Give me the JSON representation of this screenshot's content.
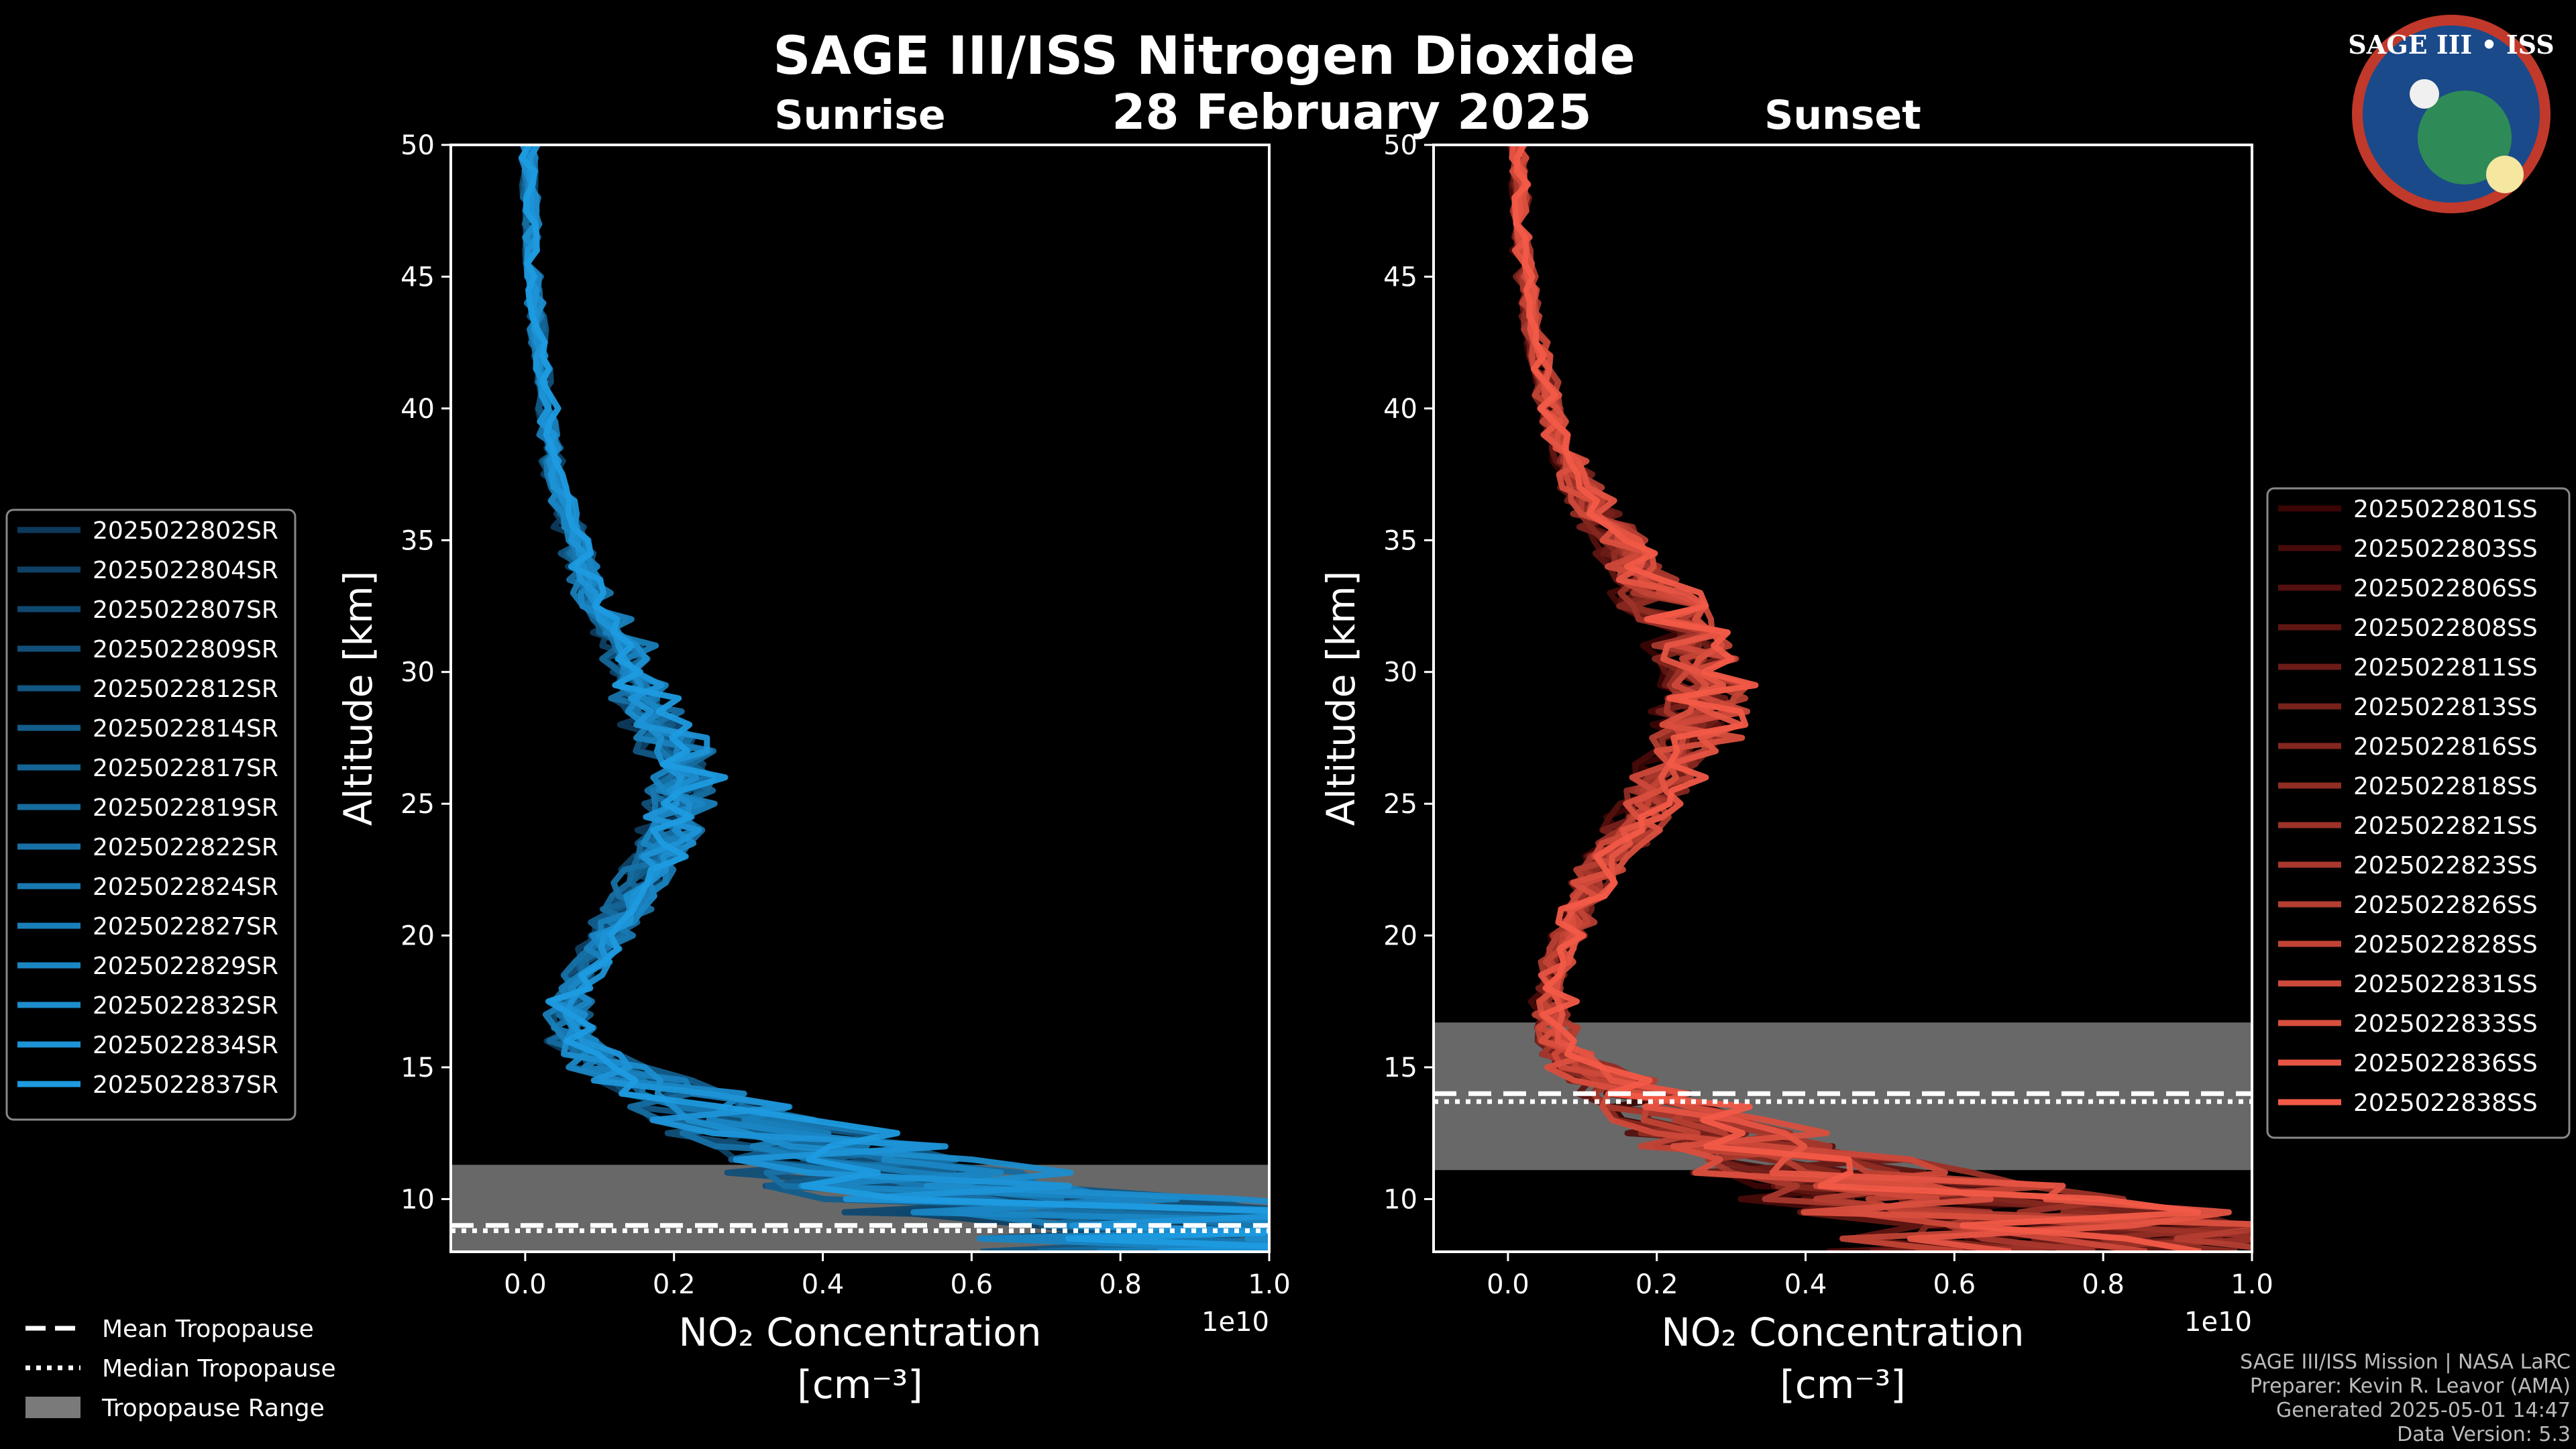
{
  "title": "SAGE III/ISS Nitrogen Dioxide",
  "date": "28 February 2025",
  "badge": {
    "text": "SAGE III • ISS",
    "colors": [
      "#1a4a8a",
      "#c0392b",
      "#ffffff"
    ]
  },
  "footer": [
    "SAGE III/ISS Mission | NASA LaRC",
    "Preparer: Kevin R. Leavor (AMA)",
    "Generated 2025-05-01 14:47",
    "Data Version: 5.3"
  ],
  "tropopause_legend": [
    {
      "label": "Mean Tropopause",
      "style": "dashed"
    },
    {
      "label": "Median Tropopause",
      "style": "dotted"
    },
    {
      "label": "Tropopause Range",
      "style": "patch"
    }
  ],
  "chart_data": [
    {
      "type": "line",
      "title": "Sunrise",
      "xlabel": "NO₂ Concentration",
      "xlabel_units": "[cm⁻³]",
      "ylabel": "Altitude [km]",
      "xlim": [
        -0.1,
        1.0
      ],
      "ylim": [
        8,
        50
      ],
      "x_offset_label": "1e10",
      "xticks": [
        0.0,
        0.2,
        0.4,
        0.6,
        0.8,
        1.0
      ],
      "xtick_labels": [
        "0.0",
        "0.2",
        "0.4",
        "0.6",
        "0.8",
        "1.0"
      ],
      "yticks": [
        10,
        15,
        20,
        25,
        30,
        35,
        40,
        45,
        50
      ],
      "ytick_labels": [
        "10",
        "15",
        "20",
        "25",
        "30",
        "35",
        "40",
        "45",
        "50"
      ],
      "color_start": "#0d3a5c",
      "color_end": "#1e9be0",
      "legend_position": "left",
      "tropopause": {
        "mean": 9.0,
        "median": 8.8,
        "min": 8.0,
        "max": 11.3
      },
      "series_names": [
        "2025022802SR",
        "2025022804SR",
        "2025022807SR",
        "2025022809SR",
        "2025022812SR",
        "2025022814SR",
        "2025022817SR",
        "2025022819SR",
        "2025022822SR",
        "2025022824SR",
        "2025022827SR",
        "2025022829SR",
        "2025022832SR",
        "2025022834SR",
        "2025022837SR"
      ],
      "profile": {
        "altitude": [
          8.5,
          9,
          10,
          11,
          12,
          13,
          14,
          15,
          16,
          17,
          18,
          19,
          20,
          21,
          22,
          23,
          24,
          25,
          26,
          27,
          28,
          29,
          30,
          31,
          32,
          33,
          34,
          35,
          36,
          37,
          38,
          39,
          40,
          41,
          42,
          43,
          44,
          45,
          46,
          47,
          48,
          49,
          50
        ],
        "no2": [
          0.95,
          0.85,
          0.6,
          0.45,
          0.35,
          0.25,
          0.18,
          0.1,
          0.06,
          0.05,
          0.06,
          0.08,
          0.1,
          0.12,
          0.14,
          0.16,
          0.18,
          0.19,
          0.19,
          0.18,
          0.16,
          0.14,
          0.13,
          0.12,
          0.1,
          0.08,
          0.07,
          0.06,
          0.05,
          0.04,
          0.035,
          0.03,
          0.025,
          0.02,
          0.018,
          0.015,
          0.012,
          0.01,
          0.008,
          0.007,
          0.006,
          0.005,
          0.005
        ]
      }
    },
    {
      "type": "line",
      "title": "Sunset",
      "xlabel": "NO₂ Concentration",
      "xlabel_units": "[cm⁻³]",
      "ylabel": "Altitude [km]",
      "xlim": [
        -0.1,
        1.0
      ],
      "ylim": [
        8,
        50
      ],
      "x_offset_label": "1e10",
      "xticks": [
        0.0,
        0.2,
        0.4,
        0.6,
        0.8,
        1.0
      ],
      "xtick_labels": [
        "0.0",
        "0.2",
        "0.4",
        "0.6",
        "0.8",
        "1.0"
      ],
      "yticks": [
        10,
        15,
        20,
        25,
        30,
        35,
        40,
        45,
        50
      ],
      "ytick_labels": [
        "10",
        "15",
        "20",
        "25",
        "30",
        "35",
        "40",
        "45",
        "50"
      ],
      "color_start": "#3a0505",
      "color_end": "#f25a47",
      "legend_position": "right",
      "tropopause": {
        "mean": 14.0,
        "median": 13.7,
        "min": 11.1,
        "max": 16.7
      },
      "series_names": [
        "2025022801SS",
        "2025022803SS",
        "2025022806SS",
        "2025022808SS",
        "2025022811SS",
        "2025022813SS",
        "2025022816SS",
        "2025022818SS",
        "2025022821SS",
        "2025022823SS",
        "2025022826SS",
        "2025022828SS",
        "2025022831SS",
        "2025022833SS",
        "2025022836SS",
        "2025022838SS"
      ],
      "profile": {
        "altitude": [
          8.5,
          9,
          10,
          11,
          12,
          13,
          14,
          15,
          16,
          17,
          18,
          19,
          20,
          21,
          22,
          23,
          24,
          25,
          26,
          27,
          28,
          29,
          30,
          31,
          32,
          33,
          34,
          35,
          36,
          37,
          38,
          39,
          40,
          41,
          42,
          43,
          44,
          45,
          46,
          47,
          48,
          49,
          50
        ],
        "no2": [
          0.95,
          0.9,
          0.75,
          0.55,
          0.4,
          0.3,
          0.22,
          0.12,
          0.08,
          0.07,
          0.07,
          0.08,
          0.1,
          0.12,
          0.14,
          0.17,
          0.2,
          0.23,
          0.26,
          0.29,
          0.31,
          0.32,
          0.32,
          0.3,
          0.27,
          0.24,
          0.21,
          0.18,
          0.15,
          0.12,
          0.1,
          0.08,
          0.07,
          0.06,
          0.05,
          0.04,
          0.035,
          0.03,
          0.025,
          0.02,
          0.02,
          0.018,
          0.015
        ]
      }
    }
  ]
}
